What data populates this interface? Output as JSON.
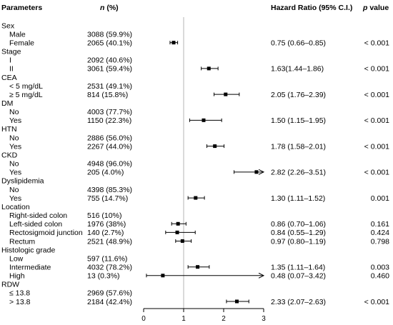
{
  "header": {
    "parameters": "Parameters",
    "n_italic": "n",
    "n_rest": " (%)",
    "hazard_ratio": "Hazard Ratio (95% C.I.)",
    "p_italic": "p",
    "p_rest": " value"
  },
  "chart_data": {
    "type": "forest",
    "xlim": [
      0,
      3
    ],
    "ticks": [
      "0",
      "1",
      "2",
      "3"
    ],
    "reference_line": 1,
    "rows": [
      {
        "kind": "group",
        "label": "Sex"
      },
      {
        "kind": "item",
        "label": "Male",
        "n": "3088 (59.9%)",
        "hr": null,
        "lo": null,
        "hi": null,
        "ci": "",
        "p": ""
      },
      {
        "kind": "item",
        "label": "Female",
        "n": "2065 (40.1%)",
        "hr": 0.75,
        "lo": 0.66,
        "hi": 0.85,
        "ci": "0.75 (0.66–0.85)",
        "p": "< 0.001"
      },
      {
        "kind": "group",
        "label": "Stage"
      },
      {
        "kind": "item",
        "label": "I",
        "n": "2092 (40.6%)",
        "hr": null,
        "lo": null,
        "hi": null,
        "ci": "",
        "p": ""
      },
      {
        "kind": "item",
        "label": "II",
        "n": "3061 (59.4%)",
        "hr": 1.63,
        "lo": 1.44,
        "hi": 1.86,
        "ci": "1.63(1.44–1.86)",
        "p": "< 0.001"
      },
      {
        "kind": "group",
        "label": "CEA"
      },
      {
        "kind": "item",
        "label": "< 5 mg/dL",
        "n": "2531 (49.1%)",
        "hr": null,
        "lo": null,
        "hi": null,
        "ci": "",
        "p": ""
      },
      {
        "kind": "item",
        "label": "≥ 5 mg/dL",
        "n": "814 (15.8%)",
        "hr": 2.05,
        "lo": 1.76,
        "hi": 2.39,
        "ci": "2.05 (1.76–2.39)",
        "p": "< 0.001"
      },
      {
        "kind": "group",
        "label": "DM"
      },
      {
        "kind": "item",
        "label": "No",
        "n": "4003 (77.7%)",
        "hr": null,
        "lo": null,
        "hi": null,
        "ci": "",
        "p": ""
      },
      {
        "kind": "item",
        "label": "Yes",
        "n": "1150 (22.3%)",
        "hr": 1.5,
        "lo": 1.15,
        "hi": 1.95,
        "ci": "1.50 (1.15–1.95)",
        "p": "< 0.001"
      },
      {
        "kind": "group",
        "label": "HTN"
      },
      {
        "kind": "item",
        "label": "No",
        "n": "2886 (56.0%)",
        "hr": null,
        "lo": null,
        "hi": null,
        "ci": "",
        "p": ""
      },
      {
        "kind": "item",
        "label": "Yes",
        "n": "2267 (44.0%)",
        "hr": 1.78,
        "lo": 1.58,
        "hi": 2.01,
        "ci": "1.78 (1.58–2.01)",
        "p": "< 0.001"
      },
      {
        "kind": "group",
        "label": "CKD"
      },
      {
        "kind": "item",
        "label": "No",
        "n": "4948 (96.0%)",
        "hr": null,
        "lo": null,
        "hi": null,
        "ci": "",
        "p": ""
      },
      {
        "kind": "item",
        "label": "Yes",
        "n": "205 (4.0%)",
        "hr": 2.82,
        "lo": 2.26,
        "hi": 3.51,
        "ci": "2.82 (2.26–3.51)",
        "p": "< 0.001"
      },
      {
        "kind": "group",
        "label": "Dyslipidemia"
      },
      {
        "kind": "item",
        "label": "No",
        "n": "4398 (85.3%)",
        "hr": null,
        "lo": null,
        "hi": null,
        "ci": "",
        "p": ""
      },
      {
        "kind": "item",
        "label": "Yes",
        "n": "755 (14.7%)",
        "hr": 1.3,
        "lo": 1.11,
        "hi": 1.52,
        "ci": "1.30 (1.11–1.52)",
        "p": "0.001"
      },
      {
        "kind": "group",
        "label": "Location"
      },
      {
        "kind": "item",
        "label": "Right-sided colon",
        "n": "516 (10%)",
        "hr": null,
        "lo": null,
        "hi": null,
        "ci": "",
        "p": ""
      },
      {
        "kind": "item",
        "label": "Left-sided colon",
        "n": "1976 (38%)",
        "hr": 0.86,
        "lo": 0.7,
        "hi": 1.06,
        "ci": "0.86 (0.70–1.06)",
        "p": "0.161"
      },
      {
        "kind": "item",
        "label": "Rectosigmoid junction",
        "n": "140 (2.7%)",
        "hr": 0.84,
        "lo": 0.55,
        "hi": 1.29,
        "ci": "0.84 (0.55–1.29)",
        "p": "0.424"
      },
      {
        "kind": "item",
        "label": "Rectum",
        "n": "2521 (48.9%)",
        "hr": 0.97,
        "lo": 0.8,
        "hi": 1.19,
        "ci": "0.97 (0.80–1.19)",
        "p": "0.798"
      },
      {
        "kind": "group",
        "label": "Histologic grade"
      },
      {
        "kind": "item",
        "label": "Low",
        "n": "597 (11.6%)",
        "hr": null,
        "lo": null,
        "hi": null,
        "ci": "",
        "p": ""
      },
      {
        "kind": "item",
        "label": "Intermediate",
        "n": "4032 (78.2%)",
        "hr": 1.35,
        "lo": 1.11,
        "hi": 1.64,
        "ci": "1.35 (1.11–1.64)",
        "p": "0.003"
      },
      {
        "kind": "item",
        "label": "High",
        "n": "13 (0.3%)",
        "hr": 0.48,
        "lo": 0.07,
        "hi": 3.42,
        "ci": "0.48 (0.07–3.42)",
        "p": "0.460"
      },
      {
        "kind": "group",
        "label": "RDW"
      },
      {
        "kind": "item",
        "label": "≤ 13.8",
        "n": "2969 (57.6%)",
        "hr": null,
        "lo": null,
        "hi": null,
        "ci": "",
        "p": ""
      },
      {
        "kind": "item",
        "label": "> 13.8",
        "n": "2184 (42.4%)",
        "hr": 2.33,
        "lo": 2.07,
        "hi": 2.63,
        "ci": "2.33 (2.07–2.63)",
        "p": "< 0.001"
      }
    ]
  }
}
